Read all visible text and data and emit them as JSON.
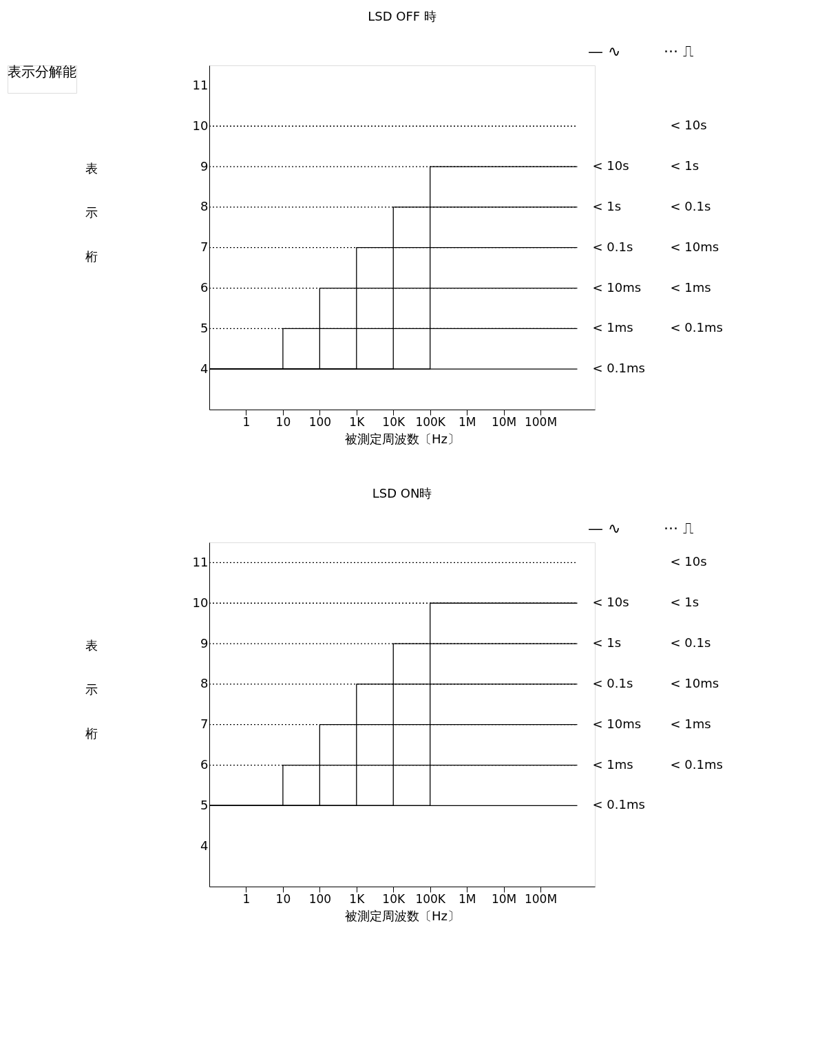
{
  "chart_data": [
    {
      "type": "other",
      "title": "表示分解能"
    },
    {
      "type": "line",
      "title": "LSD OFF 時",
      "xlabel": "被測定周波数〔Hz〕",
      "ylabel": "表示桁",
      "log": "x",
      "grid": false,
      "marker": "none",
      "xlim": [
        0.1,
        3000000000
      ],
      "ylim": [
        3,
        11.5
      ],
      "xticks": [
        {
          "value": 1,
          "label": "1"
        },
        {
          "value": 10,
          "label": "10"
        },
        {
          "value": 100,
          "label": "100"
        },
        {
          "value": 1000,
          "label": "1K"
        },
        {
          "value": 10000,
          "label": "10K"
        },
        {
          "value": 100000,
          "label": "100K"
        },
        {
          "value": 1000000,
          "label": "1M"
        },
        {
          "value": 10000000,
          "label": "10M"
        },
        {
          "value": 100000000,
          "label": "100M"
        }
      ],
      "yticks": [
        4,
        5,
        6,
        7,
        8,
        9,
        10,
        11
      ],
      "annotations": [
        "— ∿",
        "··· ⎍"
      ],
      "series": [
        {
          "name": "< 0.1ms",
          "type": "line",
          "line_style": "solid",
          "color": "#000000",
          "x": [
            0.1,
            1000000000
          ],
          "values": [
            4,
            4
          ]
        },
        {
          "name": "< 1ms",
          "type": "step",
          "line_style": "solid",
          "color": "#000000",
          "x": [
            0.1,
            10,
            1000000000
          ],
          "values": [
            4,
            5,
            5
          ]
        },
        {
          "name": "< 10ms",
          "type": "step",
          "line_style": "solid",
          "color": "#000000",
          "x": [
            0.1,
            100,
            1000000000
          ],
          "values": [
            4,
            6,
            6
          ]
        },
        {
          "name": "< 0.1s",
          "type": "step",
          "line_style": "solid",
          "color": "#000000",
          "x": [
            0.1,
            1000,
            1000000000
          ],
          "values": [
            4,
            7,
            7
          ]
        },
        {
          "name": "< 1s",
          "type": "step",
          "line_style": "solid",
          "color": "#000000",
          "x": [
            0.1,
            10000,
            1000000000
          ],
          "values": [
            4,
            8,
            8
          ]
        },
        {
          "name": "< 10s",
          "type": "step",
          "line_style": "solid",
          "color": "#000000",
          "x": [
            0.1,
            100000,
            1000000000
          ],
          "values": [
            4,
            9,
            9
          ]
        },
        {
          "name": "< 0.1ms",
          "type": "line",
          "line_style": "dotted",
          "color": "#000000",
          "x": [
            0.1,
            1000000000
          ],
          "values": [
            5,
            5
          ]
        },
        {
          "name": "< 1ms",
          "type": "line",
          "line_style": "dotted",
          "color": "#000000",
          "x": [
            0.1,
            1000000000
          ],
          "values": [
            6,
            6
          ]
        },
        {
          "name": "< 10ms",
          "type": "line",
          "line_style": "dotted",
          "color": "#000000",
          "x": [
            0.1,
            1000000000
          ],
          "values": [
            7,
            7
          ]
        },
        {
          "name": "< 0.1s",
          "type": "line",
          "line_style": "dotted",
          "color": "#000000",
          "x": [
            0.1,
            1000000000
          ],
          "values": [
            8,
            8
          ]
        },
        {
          "name": "< 1s",
          "type": "line",
          "line_style": "dotted",
          "color": "#000000",
          "x": [
            0.1,
            1000000000
          ],
          "values": [
            9,
            9
          ]
        },
        {
          "name": "< 10s",
          "type": "line",
          "line_style": "dotted",
          "color": "#000000",
          "x": [
            0.1,
            1000000000
          ],
          "values": [
            10,
            10
          ]
        }
      ]
    },
    {
      "type": "line",
      "title": "LSD ON時",
      "xlabel": "被測定周波数〔Hz〕",
      "ylabel": "表示桁",
      "log": "x",
      "grid": false,
      "marker": "none",
      "xlim": [
        0.1,
        3000000000
      ],
      "ylim": [
        3,
        11.5
      ],
      "xticks": [
        {
          "value": 1,
          "label": "1"
        },
        {
          "value": 10,
          "label": "10"
        },
        {
          "value": 100,
          "label": "100"
        },
        {
          "value": 1000,
          "label": "1K"
        },
        {
          "value": 10000,
          "label": "10K"
        },
        {
          "value": 100000,
          "label": "100K"
        },
        {
          "value": 1000000,
          "label": "1M"
        },
        {
          "value": 10000000,
          "label": "10M"
        },
        {
          "value": 100000000,
          "label": "100M"
        }
      ],
      "yticks": [
        4,
        5,
        6,
        7,
        8,
        9,
        10,
        11
      ],
      "annotations": [
        "— ∿",
        "··· ⎍"
      ],
      "series": [
        {
          "name": "< 0.1ms",
          "type": "line",
          "line_style": "solid",
          "color": "#000000",
          "x": [
            0.1,
            1000000000
          ],
          "values": [
            5,
            5
          ]
        },
        {
          "name": "< 1ms",
          "type": "step",
          "line_style": "solid",
          "color": "#000000",
          "x": [
            0.1,
            10,
            1000000000
          ],
          "values": [
            5,
            6,
            6
          ]
        },
        {
          "name": "< 10ms",
          "type": "step",
          "line_style": "solid",
          "color": "#000000",
          "x": [
            0.1,
            100,
            1000000000
          ],
          "values": [
            5,
            7,
            7
          ]
        },
        {
          "name": "< 0.1s",
          "type": "step",
          "line_style": "solid",
          "color": "#000000",
          "x": [
            0.1,
            1000,
            1000000000
          ],
          "values": [
            5,
            8,
            8
          ]
        },
        {
          "name": "< 1s",
          "type": "step",
          "line_style": "solid",
          "color": "#000000",
          "x": [
            0.1,
            10000,
            1000000000
          ],
          "values": [
            5,
            9,
            9
          ]
        },
        {
          "name": "< 10s",
          "type": "step",
          "line_style": "solid",
          "color": "#000000",
          "x": [
            0.1,
            100000,
            1000000000
          ],
          "values": [
            5,
            10,
            10
          ]
        },
        {
          "name": "< 0.1ms",
          "type": "line",
          "line_style": "dotted",
          "color": "#000000",
          "x": [
            0.1,
            1000000000
          ],
          "values": [
            6,
            6
          ]
        },
        {
          "name": "< 1ms",
          "type": "line",
          "line_style": "dotted",
          "color": "#000000",
          "x": [
            0.1,
            1000000000
          ],
          "values": [
            7,
            7
          ]
        },
        {
          "name": "< 10ms",
          "type": "line",
          "line_style": "dotted",
          "color": "#000000",
          "x": [
            0.1,
            1000000000
          ],
          "values": [
            8,
            8
          ]
        },
        {
          "name": "< 0.1s",
          "type": "line",
          "line_style": "dotted",
          "color": "#000000",
          "x": [
            0.1,
            1000000000
          ],
          "values": [
            9,
            9
          ]
        },
        {
          "name": "< 1s",
          "type": "line",
          "line_style": "dotted",
          "color": "#000000",
          "x": [
            0.1,
            1000000000
          ],
          "values": [
            10,
            10
          ]
        },
        {
          "name": "< 10s",
          "type": "line",
          "line_style": "dotted",
          "color": "#000000",
          "x": [
            0.1,
            1000000000
          ],
          "values": [
            11,
            11
          ]
        }
      ]
    }
  ]
}
